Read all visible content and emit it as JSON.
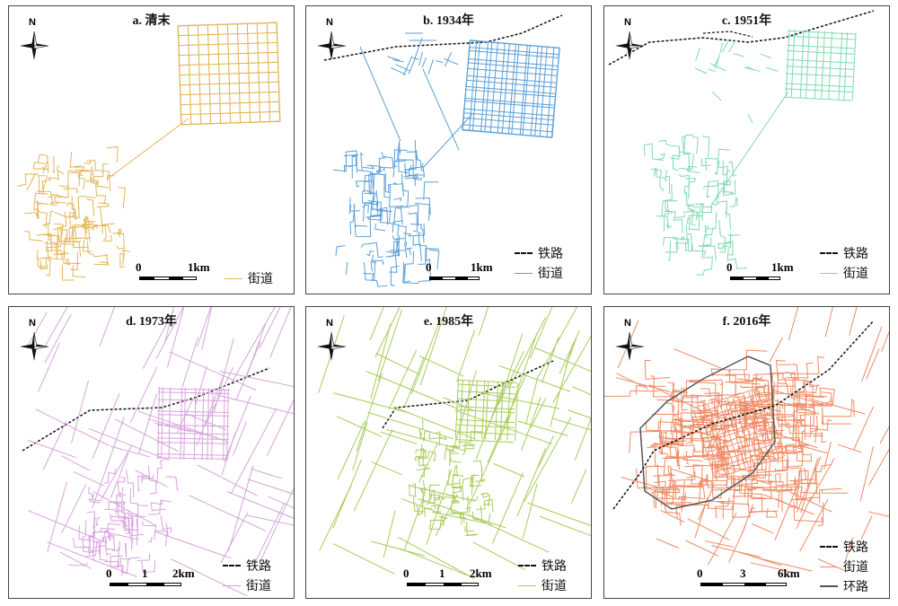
{
  "north_label": "N",
  "panels": [
    {
      "id": "a",
      "title": "a. 清末",
      "legend": [
        {
          "label": "街道",
          "style": "street",
          "color": "#e2b657"
        }
      ],
      "scale": {
        "labels": [
          "0",
          "1km"
        ]
      }
    },
    {
      "id": "b",
      "title": "b. 1934年",
      "legend": [
        {
          "label": "铁路",
          "style": "rail",
          "color": "#111111"
        },
        {
          "label": "街道",
          "style": "street",
          "color": "#5b9fd6"
        }
      ],
      "scale": {
        "labels": [
          "0",
          "1km"
        ]
      }
    },
    {
      "id": "c",
      "title": "c. 1951年",
      "legend": [
        {
          "label": "铁路",
          "style": "rail",
          "color": "#111111"
        },
        {
          "label": "街道",
          "style": "street",
          "color": "#7fd9b0"
        }
      ],
      "scale": {
        "labels": [
          "0",
          "1km"
        ]
      }
    },
    {
      "id": "d",
      "title": "d. 1973年",
      "legend": [
        {
          "label": "铁路",
          "style": "rail",
          "color": "#111111"
        },
        {
          "label": "街道",
          "style": "street",
          "color": "#d7a3dd"
        }
      ],
      "scale": {
        "labels": [
          "0",
          "1",
          "2km"
        ]
      }
    },
    {
      "id": "e",
      "title": "e. 1985年",
      "legend": [
        {
          "label": "铁路",
          "style": "rail",
          "color": "#111111"
        },
        {
          "label": "街道",
          "style": "street",
          "color": "#a7cc5a"
        }
      ],
      "scale": {
        "labels": [
          "0",
          "1",
          "2km"
        ]
      }
    },
    {
      "id": "f",
      "title": "f. 2016年",
      "legend": [
        {
          "label": "铁路",
          "style": "rail",
          "color": "#111111"
        },
        {
          "label": "街道",
          "style": "street",
          "color": "#ee8a63"
        },
        {
          "label": "环路",
          "style": "ring",
          "color": "#555555"
        }
      ],
      "scale": {
        "labels": [
          "0",
          "3",
          "6km"
        ]
      }
    }
  ]
}
